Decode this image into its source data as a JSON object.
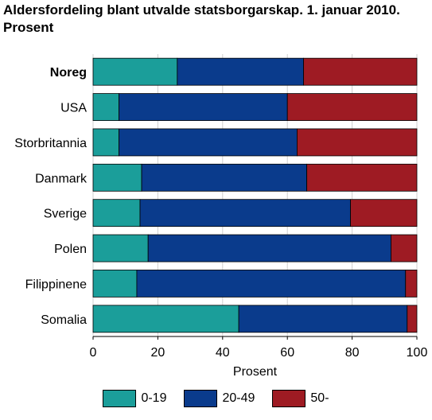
{
  "chart_data": {
    "type": "bar",
    "orientation": "horizontal",
    "stacked": true,
    "title": "Aldersfordeling blant utvalde statsborgarskap. 1. januar 2010. Prosent",
    "xlabel": "Prosent",
    "ylabel": "",
    "xlim": [
      0,
      100
    ],
    "xticks": [
      "0",
      "20",
      "40",
      "60",
      "80",
      "100"
    ],
    "grid": "vertical",
    "legend_position": "bottom",
    "categories": [
      "Noreg",
      "USA",
      "Storbritannia",
      "Danmark",
      "Sverige",
      "Polen",
      "Filippinene",
      "Somalia"
    ],
    "highlighted_category": "Noreg",
    "series": [
      {
        "name": "0-19",
        "color": "#1b9e9a",
        "values": [
          26,
          8,
          8,
          15,
          14.5,
          17,
          13.5,
          45
        ]
      },
      {
        "name": "20-49",
        "color": "#0a3b8c",
        "values": [
          39,
          52,
          55,
          51,
          65,
          75,
          83,
          52
        ]
      },
      {
        "name": "50-",
        "color": "#9e1b23",
        "values": [
          35,
          40,
          37,
          34,
          20.5,
          8,
          3.5,
          3
        ]
      }
    ]
  }
}
